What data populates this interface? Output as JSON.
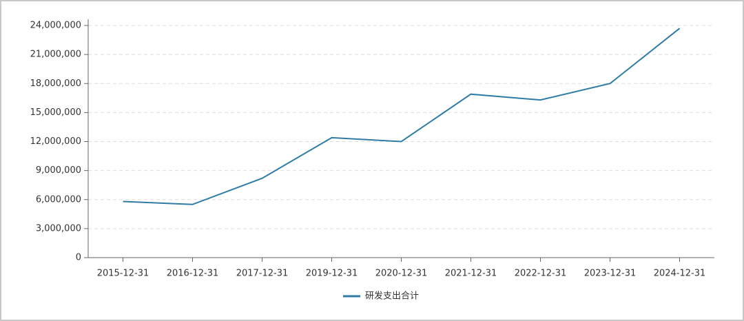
{
  "chart_data": {
    "type": "line",
    "categories": [
      "2015-12-31",
      "2016-12-31",
      "2017-12-31",
      "2019-12-31",
      "2020-12-31",
      "2021-12-31",
      "2022-12-31",
      "2023-12-31",
      "2024-12-31"
    ],
    "series": [
      {
        "name": "研发支出合计",
        "color": "#2e7ba6",
        "values": [
          5800000,
          5500000,
          8200000,
          12400000,
          12000000,
          16900000,
          16300000,
          18000000,
          23700000
        ]
      }
    ],
    "ylim": [
      0,
      24000000
    ],
    "yticks": [
      0,
      {
        "value": 3000000,
        "label": "3,000,000"
      },
      {
        "value": 6000000,
        "label": "6,000,000"
      },
      {
        "value": 9000000,
        "label": "9,000,000"
      },
      {
        "value": 12000000,
        "label": "12,000,000"
      },
      {
        "value": 15000000,
        "label": "15,000,000"
      },
      {
        "value": 18000000,
        "label": "18,000,000"
      },
      {
        "value": 21000000,
        "label": "21,000,000"
      },
      {
        "value": 24000000,
        "label": "24,000,000"
      }
    ],
    "grid": true,
    "legend": "bottom"
  }
}
